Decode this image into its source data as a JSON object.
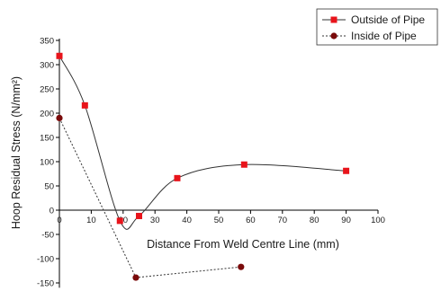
{
  "chart_data": {
    "type": "line",
    "xlabel": "Distance From Weld Centre Line (mm)",
    "ylabel": "Hoop Residual Stress (N/mm²)",
    "xlim": [
      0,
      100
    ],
    "ylim": [
      -160,
      350
    ],
    "x_ticks": [
      0,
      10,
      20,
      30,
      40,
      50,
      60,
      70,
      80,
      90,
      100
    ],
    "y_ticks": [
      -150,
      -100,
      -50,
      0,
      50,
      100,
      150,
      200,
      250,
      300,
      350
    ],
    "grid": false,
    "legend_position": "top-right",
    "series": [
      {
        "name": "Outside of Pipe",
        "color": "#e8141b",
        "marker": "square",
        "line": "solid smooth",
        "points": [
          [
            0,
            318
          ],
          [
            8,
            216
          ],
          [
            19,
            -22
          ],
          [
            25,
            -12
          ],
          [
            37,
            66
          ],
          [
            58,
            94
          ],
          [
            90,
            81
          ]
        ]
      },
      {
        "name": "Inside of Pipe",
        "color": "#7a0a0a",
        "marker": "circle",
        "line": "dotted",
        "points": [
          [
            0,
            190
          ],
          [
            24,
            -139
          ],
          [
            57,
            -117
          ]
        ]
      }
    ]
  }
}
